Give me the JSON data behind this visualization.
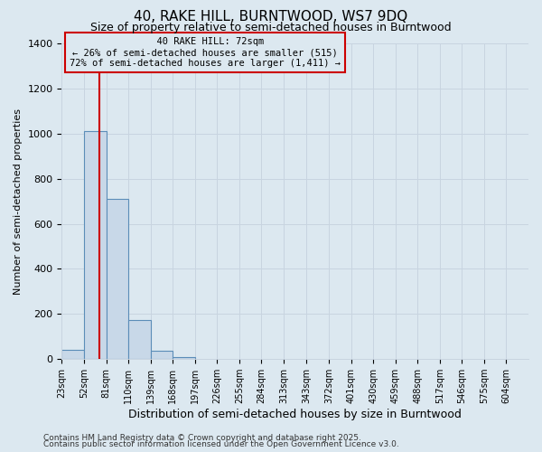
{
  "title": "40, RAKE HILL, BURNTWOOD, WS7 9DQ",
  "subtitle": "Size of property relative to semi-detached houses in Burntwood",
  "xlabel": "Distribution of semi-detached houses by size in Burntwood",
  "ylabel": "Number of semi-detached properties",
  "property_size": 72,
  "property_label": "40 RAKE HILL: 72sqm",
  "pct_smaller": 26,
  "pct_larger": 72,
  "n_smaller": 515,
  "n_larger": 1411,
  "bin_labels": [
    "23sqm",
    "52sqm",
    "81sqm",
    "110sqm",
    "139sqm",
    "168sqm",
    "197sqm",
    "226sqm",
    "255sqm",
    "284sqm",
    "313sqm",
    "343sqm",
    "372sqm",
    "401sqm",
    "430sqm",
    "459sqm",
    "488sqm",
    "517sqm",
    "546sqm",
    "575sqm",
    "604sqm"
  ],
  "bin_edges": [
    23,
    52,
    81,
    110,
    139,
    168,
    197,
    226,
    255,
    284,
    313,
    343,
    372,
    401,
    430,
    459,
    488,
    517,
    546,
    575,
    604
  ],
  "bar_heights": [
    40,
    1010,
    710,
    175,
    35,
    10,
    0,
    0,
    0,
    0,
    0,
    0,
    0,
    0,
    0,
    0,
    0,
    0,
    0,
    0
  ],
  "bar_color": "#c8d8e8",
  "bar_edge_color": "#5b8db8",
  "red_line_color": "#cc0000",
  "grid_color": "#c8d4e0",
  "background_color": "#dce8f0",
  "ylim": [
    0,
    1400
  ],
  "yticks": [
    0,
    200,
    400,
    600,
    800,
    1000,
    1200,
    1400
  ],
  "footer1": "Contains HM Land Registry data © Crown copyright and database right 2025.",
  "footer2": "Contains public sector information licensed under the Open Government Licence v3.0."
}
